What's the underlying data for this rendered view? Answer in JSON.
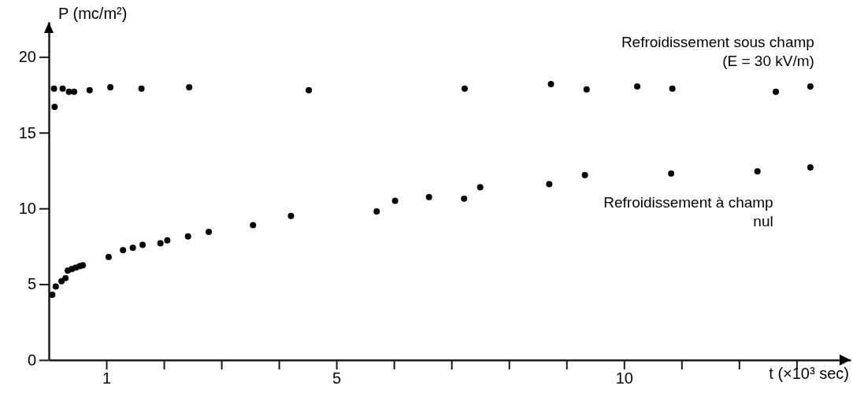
{
  "chart_data": {
    "type": "scatter",
    "xlabel": "t (×10³ sec)",
    "ylabel": "P (mc/m²)",
    "xlim": [
      0,
      13.94
    ],
    "ylim": [
      0,
      22.3
    ],
    "xticks": [
      {
        "value": 1,
        "label": "1"
      },
      {
        "value": 2,
        "label": null
      },
      {
        "value": 3,
        "label": null
      },
      {
        "value": 4,
        "label": null
      },
      5,
      {
        "value": 6,
        "label": null
      },
      {
        "value": 7,
        "label": null
      },
      {
        "value": 8,
        "label": null
      },
      {
        "value": 9,
        "label": null
      },
      10,
      {
        "value": 11,
        "label": null
      },
      {
        "value": 12,
        "label": null
      },
      {
        "value": 13,
        "label": null
      }
    ],
    "yticks": [
      0,
      5,
      10,
      15,
      20
    ],
    "marker": "circle",
    "grid": false,
    "series": [
      {
        "name": "Refroidissement sous champ (E = 30 kV/m)",
        "color": "#000000",
        "x": [
          0.09,
          0.1,
          0.24,
          0.35,
          0.44,
          0.71,
          1.07,
          1.61,
          2.44,
          4.52,
          7.23,
          8.73,
          9.35,
          10.23,
          10.84,
          12.64,
          13.24
        ],
        "values": [
          17.9,
          16.7,
          17.9,
          17.7,
          17.7,
          17.8,
          18.0,
          17.9,
          18.0,
          17.8,
          17.9,
          18.2,
          17.85,
          18.05,
          17.9,
          17.7,
          18.05
        ]
      },
      {
        "name": "Refroidissement à champ nul",
        "color": "#000000",
        "x": [
          0.06,
          0.12,
          0.22,
          0.29,
          0.33,
          0.4,
          0.47,
          0.54,
          0.59,
          1.04,
          1.29,
          1.46,
          1.63,
          1.94,
          2.06,
          2.42,
          2.78,
          3.55,
          4.21,
          5.7,
          6.02,
          6.61,
          7.22,
          7.5,
          8.7,
          9.32,
          10.82,
          12.32,
          13.24
        ],
        "values": [
          4.3,
          4.85,
          5.2,
          5.4,
          5.9,
          6.0,
          6.1,
          6.2,
          6.25,
          6.8,
          7.25,
          7.4,
          7.6,
          7.7,
          7.9,
          8.15,
          8.45,
          8.9,
          9.5,
          9.8,
          10.5,
          10.75,
          10.65,
          11.4,
          11.6,
          12.2,
          12.3,
          12.45,
          12.7
        ]
      }
    ]
  }
}
